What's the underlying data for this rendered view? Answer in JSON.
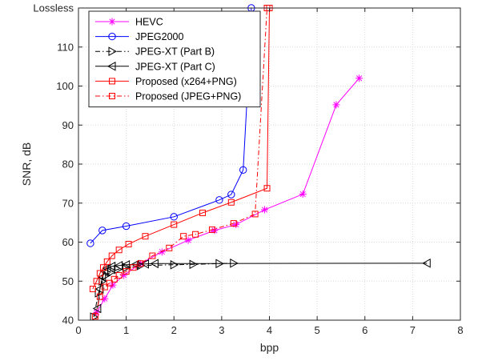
{
  "chart_data": {
    "type": "line",
    "xlabel": "bpp",
    "ylabel": "SNR, dB",
    "xlim": [
      0,
      8
    ],
    "ylim": [
      40,
      120
    ],
    "xticks": [
      0,
      1,
      2,
      3,
      4,
      5,
      6,
      7,
      8
    ],
    "yticks": [
      40,
      50,
      60,
      70,
      80,
      90,
      100,
      110,
      120
    ],
    "ytick_labels": [
      "40",
      "50",
      "60",
      "70",
      "80",
      "90",
      "100",
      "110",
      "Lossless"
    ],
    "grid": true,
    "legend_position": "top-left",
    "series": [
      {
        "name": "HEVC",
        "color": "#ff00ff",
        "line_style": "solid",
        "marker": "asterisk",
        "x": [
          0.38,
          0.55,
          0.72,
          0.95,
          1.3,
          1.75,
          2.3,
          2.85,
          3.3,
          3.9,
          4.7,
          5.4,
          5.88
        ],
        "y": [
          42.0,
          45.5,
          49.0,
          51.5,
          54.5,
          57.5,
          60.5,
          63.0,
          64.5,
          68.3,
          72.3,
          95.2,
          102.0
        ]
      },
      {
        "name": "JPEG2000",
        "color": "#0000ff",
        "line_style": "solid",
        "marker": "circle",
        "x": [
          0.25,
          0.5,
          1.0,
          2.0,
          2.95,
          3.2,
          3.45,
          3.6,
          3.62
        ],
        "y": [
          59.7,
          63.0,
          64.1,
          66.5,
          70.8,
          72.2,
          78.5,
          112.0,
          120.0
        ]
      },
      {
        "name": "JPEG-XT (Part B)",
        "color": "#000000",
        "line_style": "dashdot",
        "marker": "triangle-right",
        "x": [
          0.32,
          0.42,
          0.5,
          0.58,
          0.68,
          0.82,
          1.0,
          1.3,
          2.0,
          2.4,
          2.95,
          3.25
        ],
        "y": [
          40.8,
          47.0,
          50.0,
          51.5,
          52.3,
          53.0,
          53.5,
          54.0,
          54.2,
          54.3,
          54.5,
          54.6
        ]
      },
      {
        "name": "JPEG-XT (Part C)",
        "color": "#000000",
        "line_style": "solid",
        "marker": "triangle-left",
        "x": [
          0.4,
          0.45,
          0.5,
          0.55,
          0.6,
          0.7,
          0.85,
          1.0,
          1.2,
          1.4,
          1.6,
          7.3
        ],
        "y": [
          43.0,
          48.0,
          51.0,
          52.5,
          53.3,
          53.8,
          54.0,
          54.2,
          54.3,
          54.4,
          54.5,
          54.6
        ]
      },
      {
        "name": "Proposed (x264+PNG)",
        "color": "#ff0000",
        "line_style": "solid",
        "marker": "square",
        "x": [
          0.3,
          0.38,
          0.45,
          0.52,
          0.6,
          0.7,
          0.85,
          1.05,
          1.4,
          2.0,
          2.6,
          3.2,
          3.95,
          4.0
        ],
        "y": [
          48.0,
          50.0,
          52.0,
          53.5,
          55.0,
          56.5,
          58.0,
          59.5,
          61.5,
          64.5,
          67.5,
          70.2,
          73.8,
          120.0
        ]
      },
      {
        "name": "Proposed (JPEG+PNG)",
        "color": "#ff0000",
        "line_style": "dashdot",
        "marker": "square",
        "x": [
          0.35,
          0.45,
          0.55,
          0.65,
          0.75,
          0.85,
          1.0,
          1.15,
          1.3,
          1.55,
          1.9,
          2.2,
          2.45,
          2.8,
          3.25,
          3.7,
          3.95
        ],
        "y": [
          41.0,
          46.0,
          48.5,
          49.5,
          50.5,
          51.5,
          52.5,
          53.5,
          54.5,
          56.5,
          58.5,
          61.5,
          62.0,
          63.2,
          64.8,
          67.2,
          120.0
        ]
      }
    ]
  }
}
